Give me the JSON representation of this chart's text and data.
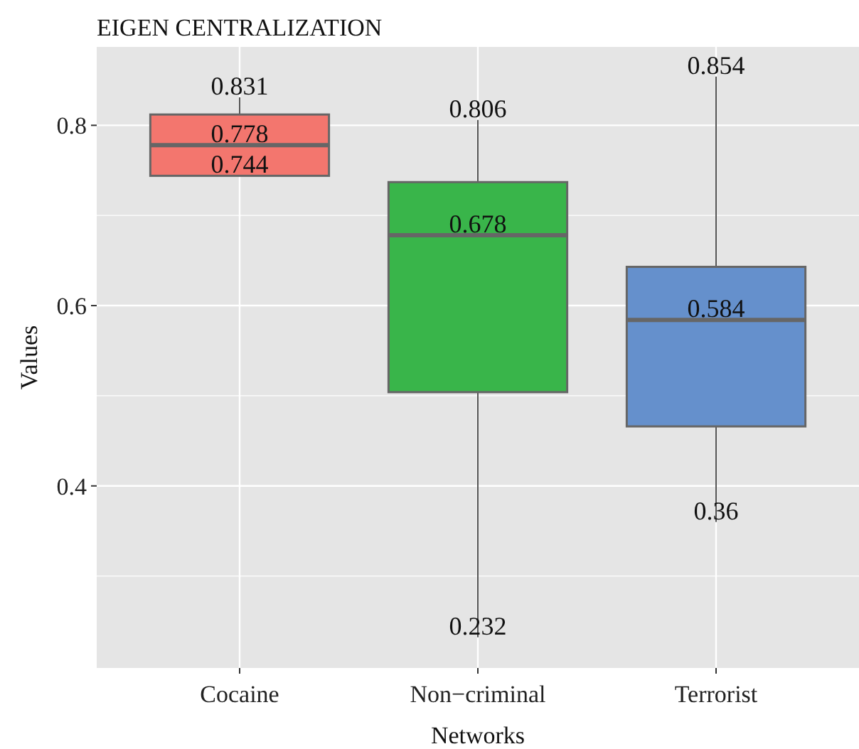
{
  "chart_data": {
    "type": "box",
    "title": "EIGEN CENTRALIZATION",
    "xlabel": "Networks",
    "ylabel": "Values",
    "categories": [
      "Cocaine",
      "Non−criminal",
      "Terrorist"
    ],
    "colors": [
      "#f3766e",
      "#39b54a",
      "#6590cc"
    ],
    "boxes": [
      {
        "low": 0.744,
        "q1": 0.744,
        "median": 0.778,
        "q3": 0.812,
        "high": 0.831
      },
      {
        "low": 0.232,
        "q1": 0.504,
        "median": 0.678,
        "q3": 0.737,
        "high": 0.806
      },
      {
        "low": 0.36,
        "q1": 0.466,
        "median": 0.584,
        "q3": 0.643,
        "high": 0.854
      }
    ],
    "ylim": [
      0.198,
      0.887
    ],
    "yticks": [
      0.4,
      0.6,
      0.8
    ],
    "grid": true,
    "annotations": [
      {
        "text": "0.831",
        "x": "Cocaine",
        "y": 0.831
      },
      {
        "text": "0.778",
        "x": "Cocaine",
        "y": 0.778
      },
      {
        "text": "0.744",
        "x": "Cocaine",
        "y": 0.744
      },
      {
        "text": "0.806",
        "x": "Non−criminal",
        "y": 0.806
      },
      {
        "text": "0.678",
        "x": "Non−criminal",
        "y": 0.678
      },
      {
        "text": "0.232",
        "x": "Non−criminal",
        "y": 0.232
      },
      {
        "text": "0.854",
        "x": "Terrorist",
        "y": 0.854
      },
      {
        "text": "0.584",
        "x": "Terrorist",
        "y": 0.584
      },
      {
        "text": "0.36",
        "x": "Terrorist",
        "y": 0.36
      }
    ]
  }
}
